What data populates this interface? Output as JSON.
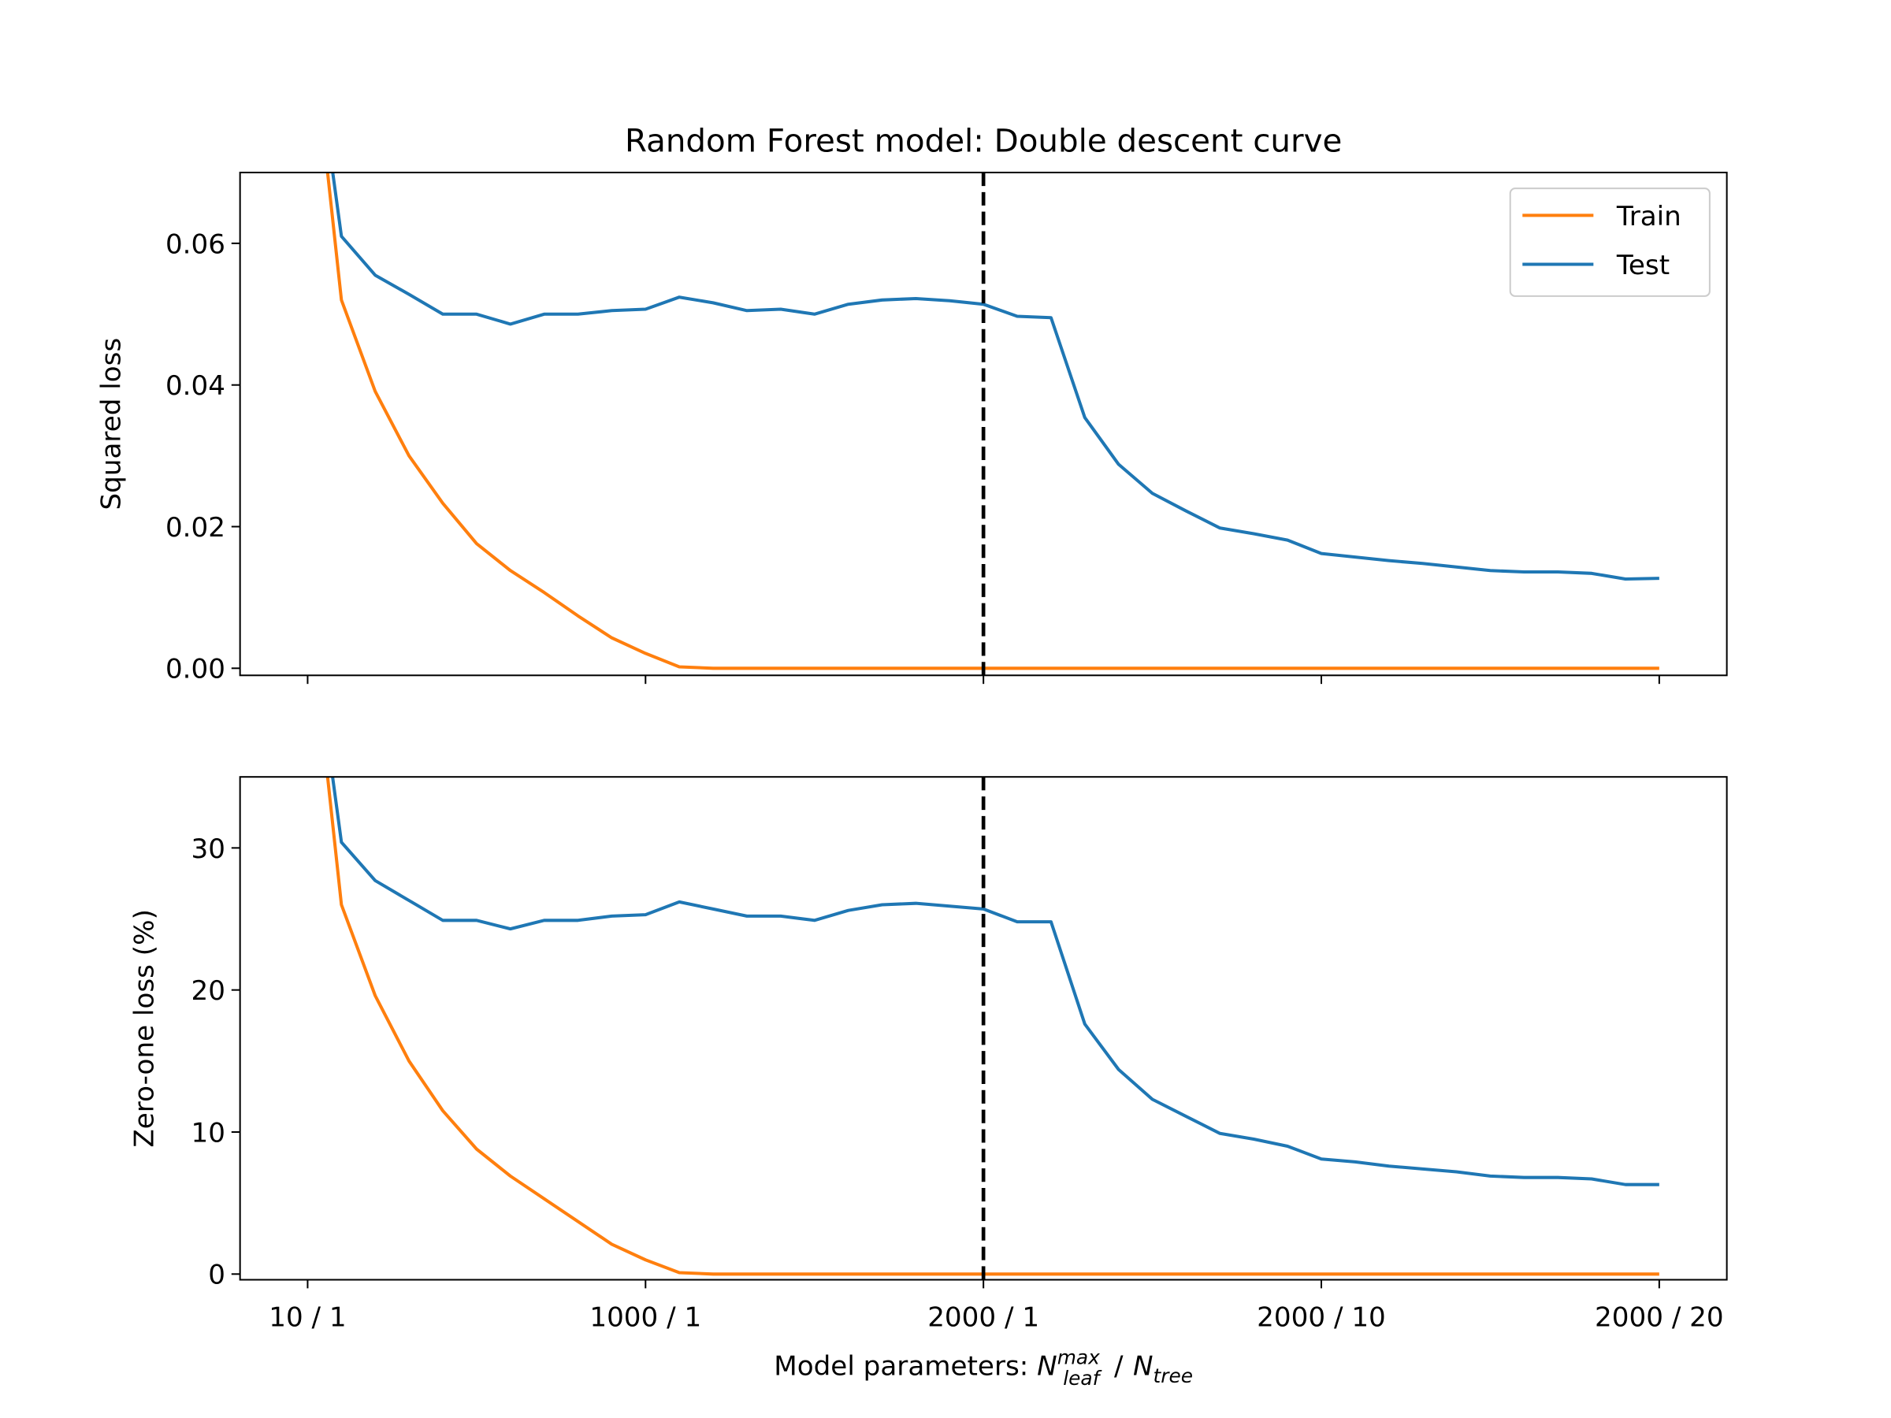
{
  "chart_data": [
    {
      "type": "line",
      "title": "Random Forest model: Double descent curve",
      "ylabel": "Squared loss",
      "x": [
        0,
        1,
        2,
        3,
        4,
        5,
        6,
        7,
        8,
        9,
        10,
        11,
        12,
        13,
        14,
        15,
        16,
        17,
        18,
        19,
        20,
        21,
        22,
        23,
        24,
        25,
        26,
        27,
        28,
        29,
        30,
        31,
        32,
        33,
        34,
        35,
        36,
        37,
        38,
        39,
        40
      ],
      "series": [
        {
          "name": "Train",
          "color": "#ff7f0e",
          "values": [
            0.096,
            0.052,
            0.0391,
            0.03,
            0.0233,
            0.0176,
            0.0138,
            0.0107,
            0.0074,
            0.0043,
            0.0021,
            0.0002,
            0,
            0,
            0,
            0,
            0,
            0,
            0,
            0,
            0,
            0,
            0,
            0,
            0,
            0,
            0,
            0,
            0,
            0,
            0,
            0,
            0,
            0,
            0,
            0,
            0,
            0,
            0,
            0,
            0
          ]
        },
        {
          "name": "Test",
          "color": "#1f77b4",
          "values": [
            0.096,
            0.061,
            0.0555,
            0.0528,
            0.05,
            0.05,
            0.0486,
            0.05,
            0.05,
            0.0505,
            0.0507,
            0.0524,
            0.0516,
            0.0505,
            0.0507,
            0.05,
            0.0514,
            0.052,
            0.0522,
            0.0519,
            0.0514,
            0.0497,
            0.0495,
            0.0354,
            0.0288,
            0.0247,
            0.0222,
            0.0198,
            0.019,
            0.0181,
            0.0162,
            0.0157,
            0.0152,
            0.0148,
            0.0143,
            0.0138,
            0.0136,
            0.0136,
            0.0134,
            0.0126,
            0.0127
          ]
        }
      ],
      "xlim": [
        -2,
        42
      ],
      "xticks": [
        0,
        10,
        20,
        30,
        40
      ],
      "ylim": [
        -0.001,
        0.07
      ],
      "yticks": [
        {
          "value": 0,
          "label": "0.00"
        },
        {
          "value": 0.02,
          "label": "0.02"
        },
        {
          "value": 0.04,
          "label": "0.04"
        },
        {
          "value": 0.06,
          "label": "0.06"
        }
      ],
      "vline": 20,
      "legend": "upper right"
    },
    {
      "type": "line",
      "ylabel": "Zero-one loss (%)",
      "xlabel": {
        "prefix": "Model parameters:",
        "leaf_symbol": "N",
        "leaf_sub": "leaf",
        "leaf_sup": "max",
        "separator": "/",
        "tree_symbol": "N",
        "tree_sub": "tree"
      },
      "x": [
        0,
        1,
        2,
        3,
        4,
        5,
        6,
        7,
        8,
        9,
        10,
        11,
        12,
        13,
        14,
        15,
        16,
        17,
        18,
        19,
        20,
        21,
        22,
        23,
        24,
        25,
        26,
        27,
        28,
        29,
        30,
        31,
        32,
        33,
        34,
        35,
        36,
        37,
        38,
        39,
        40
      ],
      "series": [
        {
          "name": "Train",
          "color": "#ff7f0e",
          "values": [
            48,
            26,
            19.6,
            15,
            11.5,
            8.8,
            6.9,
            5.3,
            3.7,
            2.1,
            1.0,
            0.1,
            0,
            0,
            0,
            0,
            0,
            0,
            0,
            0,
            0,
            0,
            0,
            0,
            0,
            0,
            0,
            0,
            0,
            0,
            0,
            0,
            0,
            0,
            0,
            0,
            0,
            0,
            0,
            0,
            0
          ]
        },
        {
          "name": "Test",
          "color": "#1f77b4",
          "values": [
            48,
            30.4,
            27.7,
            26.3,
            24.9,
            24.9,
            24.3,
            24.9,
            24.9,
            25.2,
            25.3,
            26.2,
            25.7,
            25.2,
            25.2,
            24.9,
            25.6,
            26.0,
            26.1,
            25.9,
            25.7,
            24.8,
            24.8,
            17.6,
            14.4,
            12.3,
            11.1,
            9.9,
            9.5,
            9.0,
            8.1,
            7.9,
            7.6,
            7.4,
            7.2,
            6.9,
            6.8,
            6.8,
            6.7,
            6.3,
            6.3
          ]
        }
      ],
      "xlim": [
        -2,
        42
      ],
      "xticks": [
        {
          "value": 0,
          "label": "10 / 1"
        },
        {
          "value": 10,
          "label": "1000 / 1"
        },
        {
          "value": 20,
          "label": "2000 / 1"
        },
        {
          "value": 30,
          "label": "2000 / 10"
        },
        {
          "value": 40,
          "label": "2000 / 20"
        }
      ],
      "ylim": [
        -0.4,
        35
      ],
      "yticks": [
        0,
        10,
        20,
        30
      ],
      "vline": 20
    }
  ]
}
